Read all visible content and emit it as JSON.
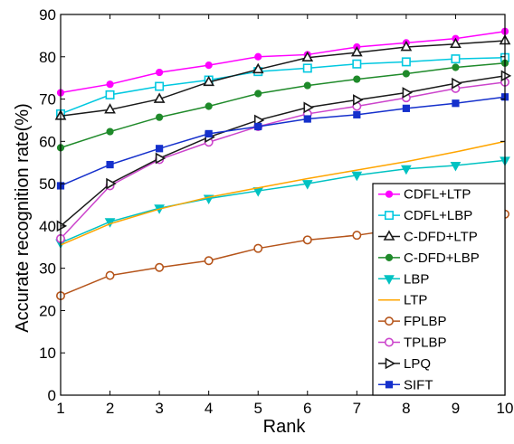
{
  "chart_data": {
    "type": "line",
    "xlabel": "Rank",
    "ylabel": "Accurate recognition rate(%)",
    "x": [
      1,
      2,
      3,
      4,
      5,
      6,
      7,
      8,
      9,
      10
    ],
    "xlim": [
      1,
      10
    ],
    "ylim": [
      0,
      90
    ],
    "xticks": [
      1,
      2,
      3,
      4,
      5,
      6,
      7,
      8,
      9,
      10
    ],
    "yticks": [
      0,
      10,
      20,
      30,
      40,
      50,
      60,
      70,
      80,
      90
    ],
    "grid": false,
    "legend_position": "bottom-right",
    "series": [
      {
        "name": "CDFL+LTP",
        "color": "#ff00ff",
        "marker": "circle-filled",
        "values": [
          71.5,
          73.5,
          76.3,
          78.0,
          80.0,
          80.5,
          82.3,
          83.3,
          84.3,
          86.0
        ]
      },
      {
        "name": "CDFL+LBP",
        "color": "#00c8e0",
        "marker": "square-open",
        "values": [
          66.5,
          71.0,
          73.0,
          74.5,
          76.5,
          77.3,
          78.3,
          78.8,
          79.5,
          79.8
        ]
      },
      {
        "name": "C-DFD+LTP",
        "color": "#1a1a1a",
        "marker": "triangle-up-open",
        "values": [
          66.0,
          67.5,
          70.0,
          74.0,
          77.0,
          79.8,
          81.0,
          82.3,
          83.0,
          83.8
        ]
      },
      {
        "name": "C-DFD+LBP",
        "color": "#1f8a2a",
        "marker": "circle-filled",
        "values": [
          58.5,
          62.3,
          65.7,
          68.3,
          71.3,
          73.2,
          74.7,
          76.0,
          77.5,
          78.5
        ]
      },
      {
        "name": "LBP",
        "color": "#00c2c2",
        "marker": "triangle-down-filled",
        "values": [
          36.0,
          41.0,
          44.2,
          46.5,
          48.3,
          50.0,
          52.0,
          53.5,
          54.3,
          55.5
        ]
      },
      {
        "name": "LTP",
        "color": "#ffa500",
        "marker": "none",
        "values": [
          35.5,
          40.5,
          44.0,
          46.8,
          49.0,
          51.2,
          53.2,
          55.2,
          57.5,
          60.0
        ]
      },
      {
        "name": "FPLBP",
        "color": "#b5541a",
        "marker": "circle-open",
        "values": [
          23.5,
          28.3,
          30.2,
          31.8,
          34.7,
          36.7,
          37.8,
          39.5,
          40.8,
          42.8
        ]
      },
      {
        "name": "TPLBP",
        "color": "#cc44cc",
        "marker": "circle-open",
        "values": [
          37.0,
          49.5,
          55.7,
          59.8,
          63.5,
          66.5,
          68.3,
          70.3,
          72.5,
          74.0
        ]
      },
      {
        "name": "LPQ",
        "color": "#1a1a1a",
        "marker": "triangle-right-open",
        "values": [
          40.0,
          50.0,
          56.0,
          61.0,
          65.0,
          68.0,
          69.8,
          71.5,
          73.7,
          75.5
        ]
      },
      {
        "name": "SIFT",
        "color": "#1530cc",
        "marker": "square-filled",
        "values": [
          49.5,
          54.5,
          58.3,
          61.8,
          63.5,
          65.3,
          66.3,
          67.8,
          69.0,
          70.5
        ]
      }
    ]
  }
}
